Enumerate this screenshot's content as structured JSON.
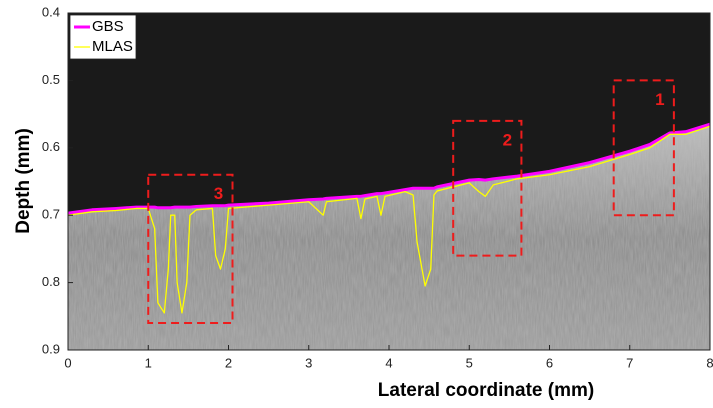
{
  "chart_data": {
    "type": "line",
    "x_label": "Lateral coordinate (mm)",
    "y_label": "Depth (mm)",
    "xlim": [
      0,
      8
    ],
    "ylim": [
      0.4,
      0.9
    ],
    "y_reversed": true,
    "xticks": [
      0,
      1,
      2,
      3,
      4,
      5,
      6,
      7,
      8
    ],
    "yticks": [
      0.4,
      0.5,
      0.6,
      0.7,
      0.8,
      0.9
    ],
    "legend": "upper left",
    "x": [
      0,
      0.3,
      0.6,
      0.85,
      1.0,
      1.08,
      1.12,
      1.2,
      1.25,
      1.28,
      1.33,
      1.36,
      1.42,
      1.48,
      1.52,
      1.6,
      1.8,
      1.84,
      1.9,
      1.96,
      2.0,
      2.5,
      3.0,
      3.18,
      3.22,
      3.6,
      3.65,
      3.7,
      3.85,
      3.9,
      3.95,
      4.2,
      4.3,
      4.35,
      4.45,
      4.52,
      4.56,
      4.6,
      5.0,
      5.12,
      5.2,
      5.3,
      5.6,
      6.0,
      6.5,
      7.0,
      7.25,
      7.5,
      7.7,
      8.0
    ],
    "series": [
      {
        "name": "GBS",
        "color": "#ff00ff",
        "width": 3,
        "values": [
          0.697,
          0.692,
          0.69,
          0.688,
          0.688,
          0.688,
          0.689,
          0.689,
          0.689,
          0.689,
          0.688,
          0.688,
          0.688,
          0.688,
          0.688,
          0.687,
          0.686,
          0.686,
          0.686,
          0.686,
          0.685,
          0.682,
          0.677,
          0.676,
          0.675,
          0.672,
          0.672,
          0.671,
          0.668,
          0.668,
          0.667,
          0.662,
          0.66,
          0.66,
          0.66,
          0.66,
          0.66,
          0.658,
          0.648,
          0.647,
          0.648,
          0.646,
          0.642,
          0.635,
          0.622,
          0.605,
          0.595,
          0.578,
          0.576,
          0.565
        ]
      },
      {
        "name": "MLAS",
        "color": "#ffff00",
        "width": 1.3,
        "values": [
          0.7,
          0.695,
          0.693,
          0.69,
          0.69,
          0.72,
          0.83,
          0.845,
          0.78,
          0.7,
          0.7,
          0.8,
          0.845,
          0.8,
          0.7,
          0.692,
          0.69,
          0.76,
          0.78,
          0.75,
          0.69,
          0.685,
          0.68,
          0.7,
          0.68,
          0.675,
          0.705,
          0.676,
          0.672,
          0.7,
          0.672,
          0.665,
          0.67,
          0.74,
          0.805,
          0.78,
          0.67,
          0.664,
          0.652,
          0.665,
          0.672,
          0.655,
          0.646,
          0.64,
          0.628,
          0.61,
          0.6,
          0.58,
          0.58,
          0.568
        ]
      }
    ],
    "regions": [
      {
        "label": "1",
        "xlim": [
          6.8,
          7.55
        ],
        "ylim": [
          0.5,
          0.7
        ]
      },
      {
        "label": "2",
        "xlim": [
          4.8,
          5.65
        ],
        "ylim": [
          0.56,
          0.76
        ]
      },
      {
        "label": "3",
        "xlim": [
          1.0,
          2.05
        ],
        "ylim": [
          0.64,
          0.86
        ]
      }
    ]
  }
}
